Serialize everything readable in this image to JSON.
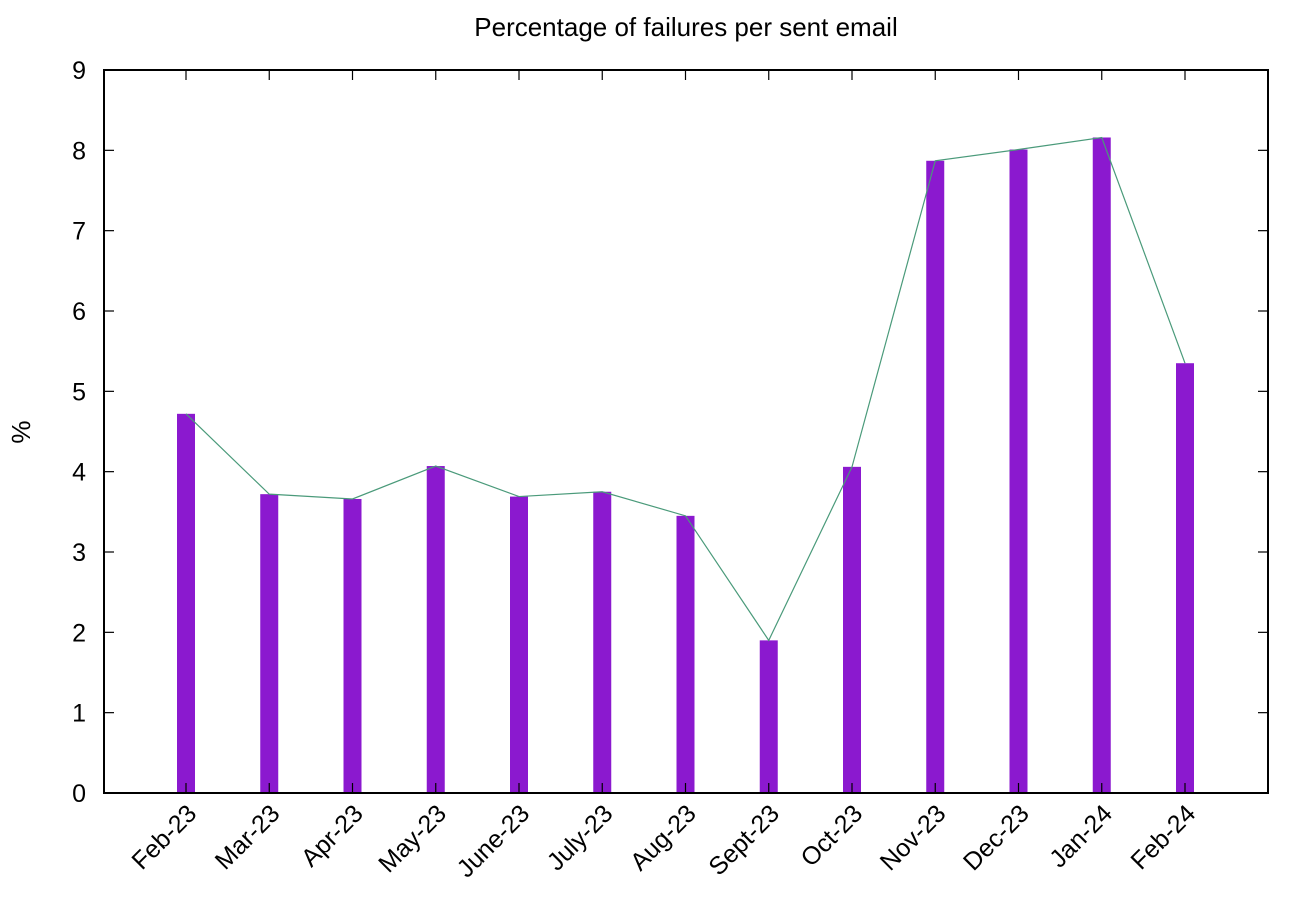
{
  "chart_data": {
    "type": "bar",
    "title": "Percentage of failures per sent email",
    "xlabel": "",
    "ylabel": "%",
    "ylim": [
      0,
      9
    ],
    "yticks": [
      0,
      1,
      2,
      3,
      4,
      5,
      6,
      7,
      8,
      9
    ],
    "grid": false,
    "categories": [
      "Feb-23",
      "Mar-23",
      "Apr-23",
      "May-23",
      "June-23",
      "July-23",
      "Aug-23",
      "Sept-23",
      "Oct-23",
      "Nov-23",
      "Dec-23",
      "Jan-24",
      "Feb-24"
    ],
    "values": [
      4.72,
      3.72,
      3.66,
      4.07,
      3.69,
      3.75,
      3.45,
      1.9,
      4.06,
      7.87,
      8.01,
      8.16,
      5.35
    ],
    "bar_color": "#8b19cf",
    "line_color": "#4a9a7a",
    "overlay_line": true
  }
}
